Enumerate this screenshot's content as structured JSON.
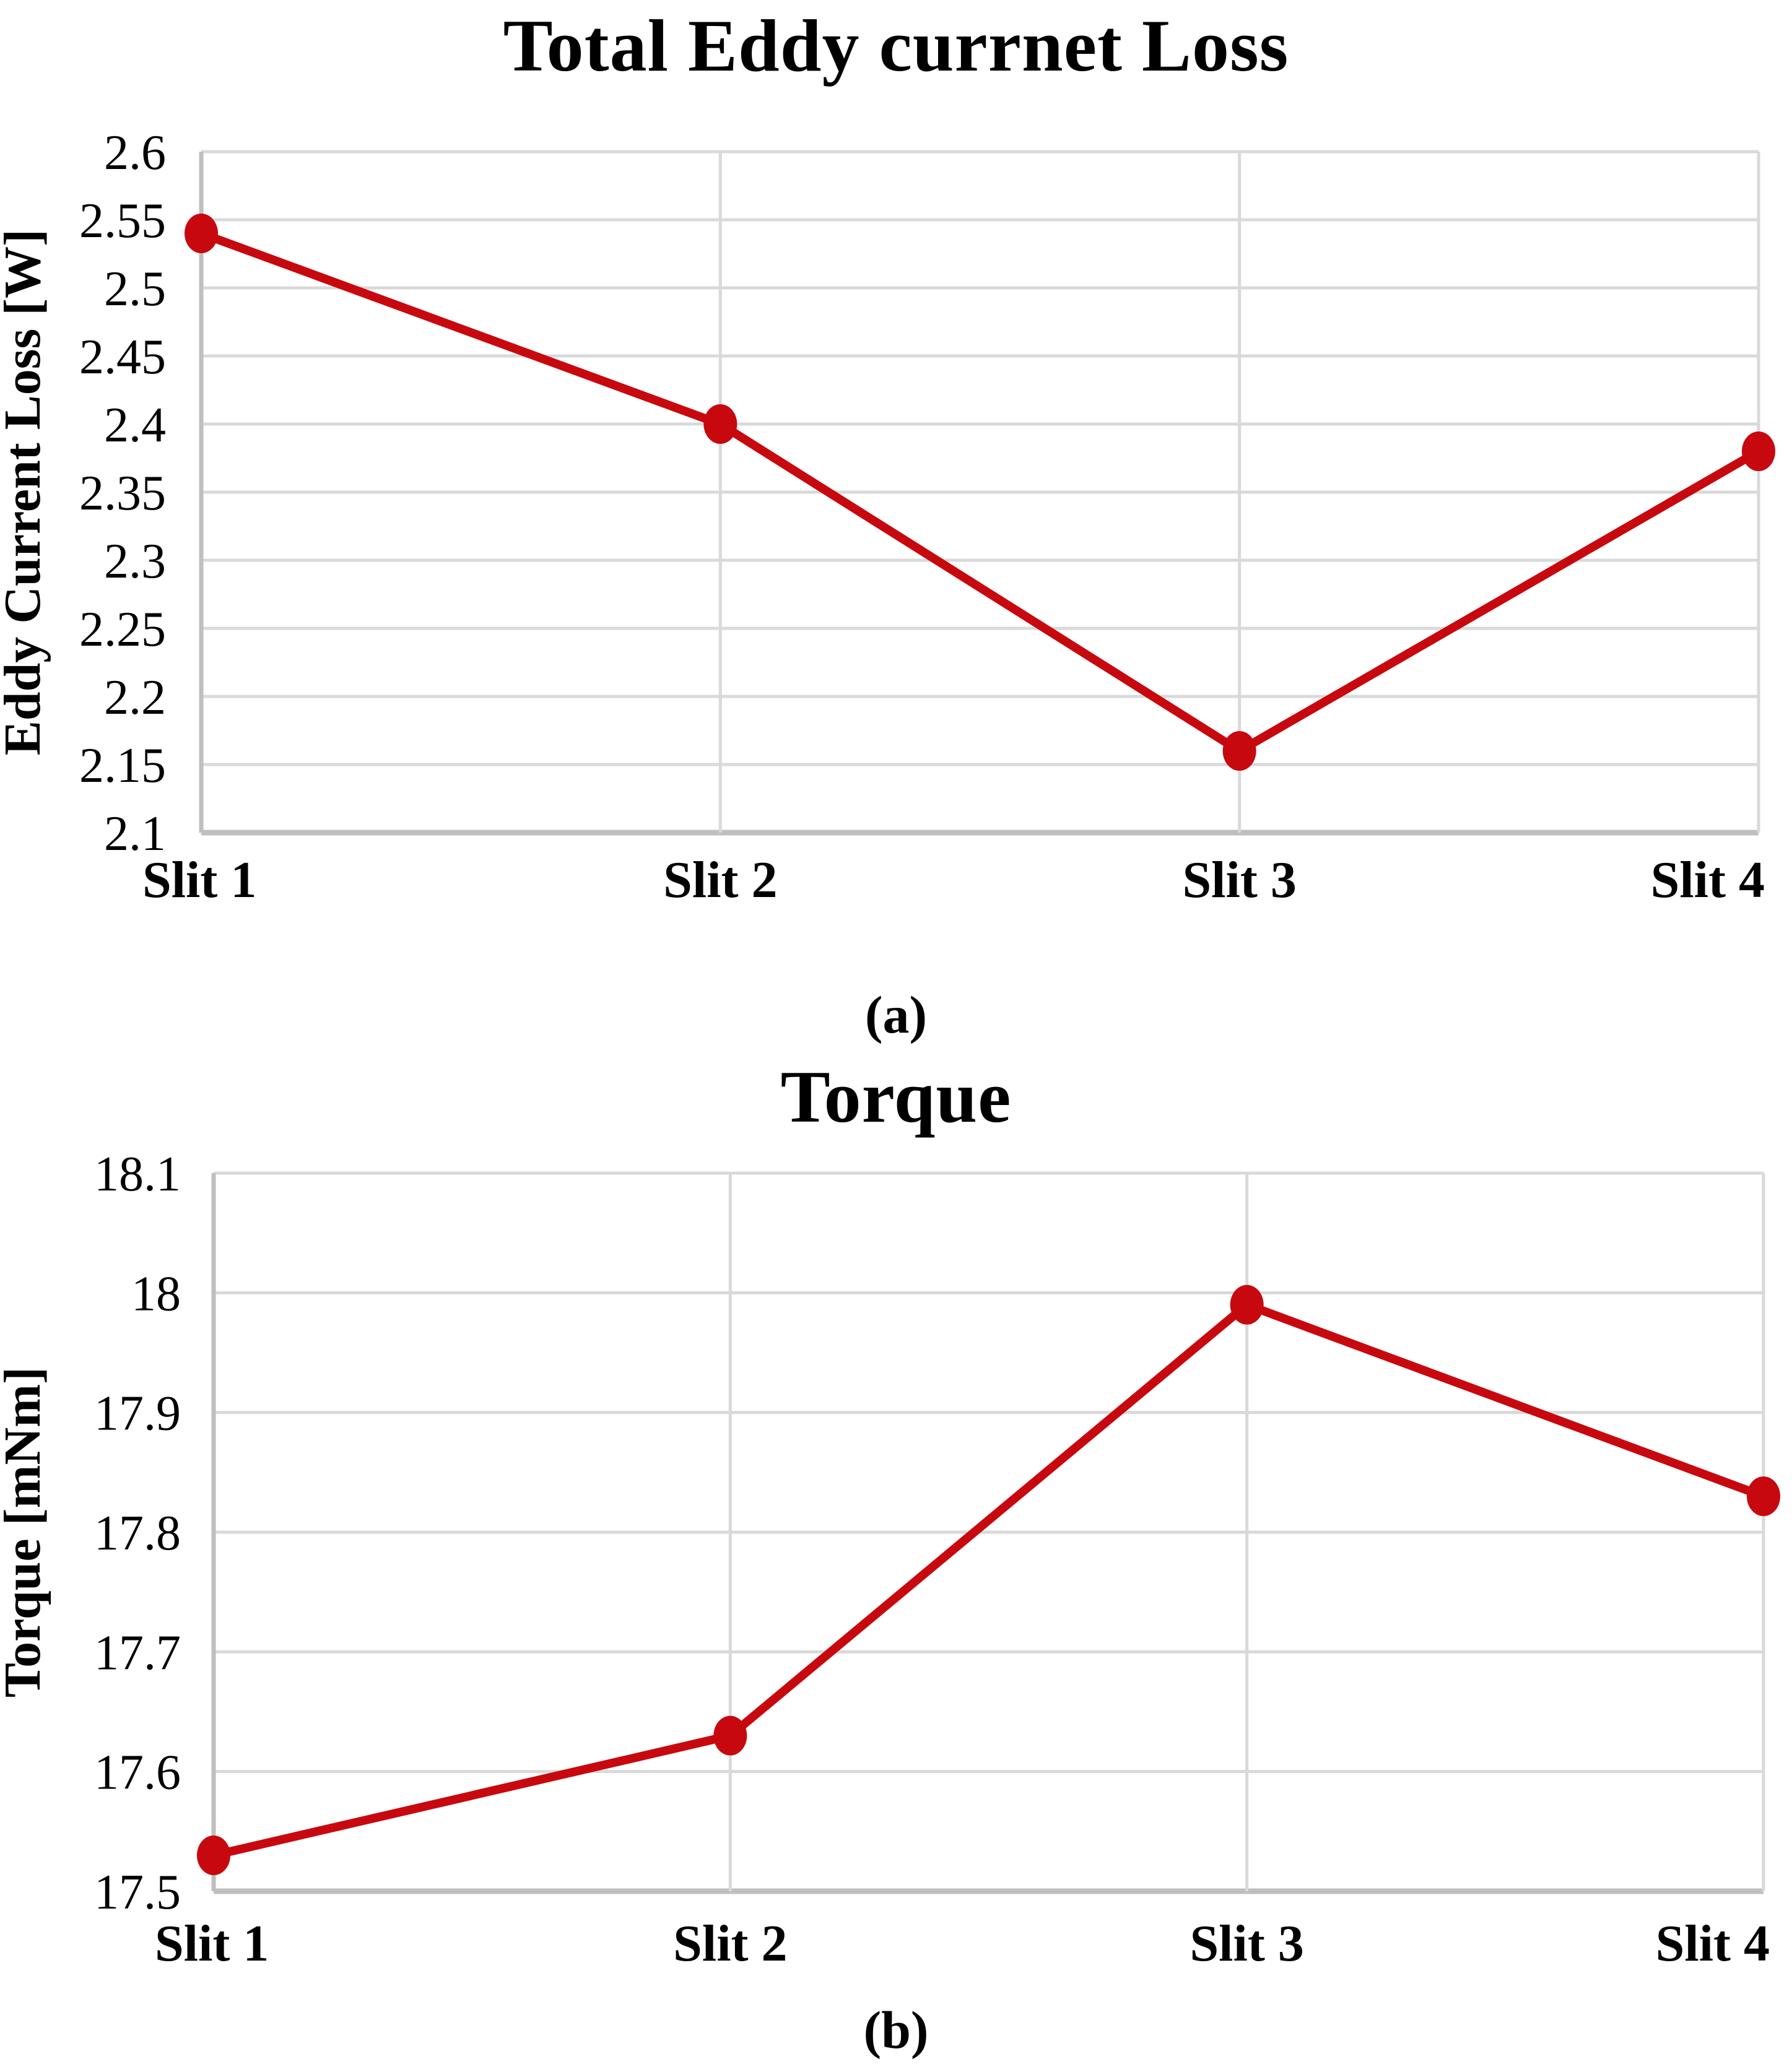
{
  "figure_a": {
    "title": "Total Eddy currnet Loss",
    "caption": "(a)"
  },
  "figure_b": {
    "title": "Torque",
    "caption": "(b)"
  },
  "style": {
    "line_color": "#c7090f",
    "marker_color": "#c7090f",
    "gridline_color": "#d9d9d9",
    "axis_line_color": "#bfbfbf",
    "text_color": "#000000",
    "background": "#ffffff"
  },
  "chart_data": [
    {
      "type": "line",
      "title": "Total Eddy currnet Loss",
      "categories": [
        "Slit 1",
        "Slit 2",
        "Slit 3",
        "Slit 4"
      ],
      "series": [
        {
          "values": [
            2.54,
            2.4,
            2.16,
            2.38
          ]
        }
      ],
      "xlabel": "",
      "ylabel": "Eddy Current Loss [W]",
      "ylim": [
        2.1,
        2.6
      ],
      "y_ticks": [
        2.1,
        2.15,
        2.2,
        2.25,
        2.3,
        2.35,
        2.4,
        2.45,
        2.5,
        2.55,
        2.6
      ],
      "y_tick_labels": [
        "2.1",
        "2.15",
        "2.2",
        "2.25",
        "2.3",
        "2.35",
        "2.4",
        "2.45",
        "2.5",
        "2.55",
        "2.6"
      ],
      "grid": true,
      "legend": false,
      "marker": "circle"
    },
    {
      "type": "line",
      "title": "Torque",
      "categories": [
        "Slit 1",
        "Slit 2",
        "Slit 3",
        "Slit 4"
      ],
      "series": [
        {
          "values": [
            17.53,
            17.63,
            17.99,
            17.83
          ]
        }
      ],
      "xlabel": "",
      "ylabel": "Torque [mNm]",
      "ylim": [
        17.5,
        18.1
      ],
      "y_ticks": [
        17.5,
        17.6,
        17.7,
        17.8,
        17.9,
        18,
        18.1
      ],
      "y_tick_labels": [
        "17.5",
        "17.6",
        "17.7",
        "17.8",
        "17.9",
        "18",
        "18.1"
      ],
      "grid": true,
      "legend": false,
      "marker": "circle"
    }
  ]
}
